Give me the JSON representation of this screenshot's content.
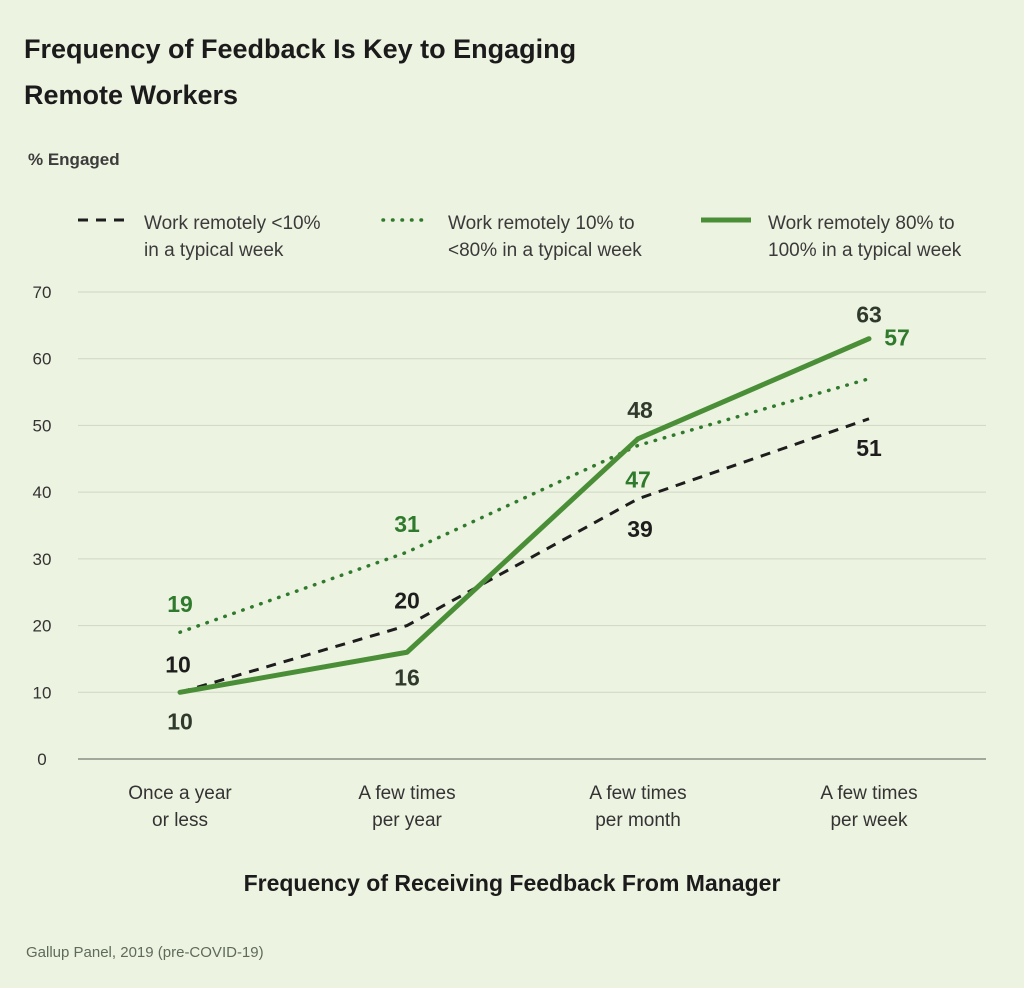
{
  "title_lines": [
    "Frequency of Feedback Is Key to Engaging",
    "Remote Workers"
  ],
  "source": "Gallup Panel, 2019 (pre-COVID-19)",
  "colors": {
    "background": "#edf3e1",
    "dark": "#1d1d1d",
    "green": "#4a8f38",
    "dotgreen": "#2f7a2c",
    "grid": "#cfd6c4"
  },
  "chart_data": {
    "type": "line",
    "ylabel": "% Engaged",
    "xlabel": "Frequency of Receiving Feedback From Manager",
    "ylim": [
      0,
      70
    ],
    "yticks": [
      0,
      10,
      20,
      30,
      40,
      50,
      60,
      70
    ],
    "grid": true,
    "legend_position": "top",
    "categories": [
      [
        "Once a year",
        "or less"
      ],
      [
        "A few times",
        "per year"
      ],
      [
        "A few times",
        "per month"
      ],
      [
        "A few times",
        "per week"
      ]
    ],
    "series": [
      {
        "name_lines": [
          "Work remotely <10%",
          "in a typical week"
        ],
        "style": "dashed",
        "color": "#1d1d1d",
        "values": [
          10,
          20,
          39,
          51
        ]
      },
      {
        "name_lines": [
          "Work remotely 10% to",
          "<80% in a typical week"
        ],
        "style": "dotted",
        "color": "#2f7a2c",
        "values": [
          19,
          31,
          47,
          57
        ]
      },
      {
        "name_lines": [
          "Work remotely 80% to",
          "100% in a typical week"
        ],
        "style": "solid",
        "color": "#4a8f38",
        "values": [
          10,
          16,
          48,
          63
        ]
      }
    ]
  }
}
